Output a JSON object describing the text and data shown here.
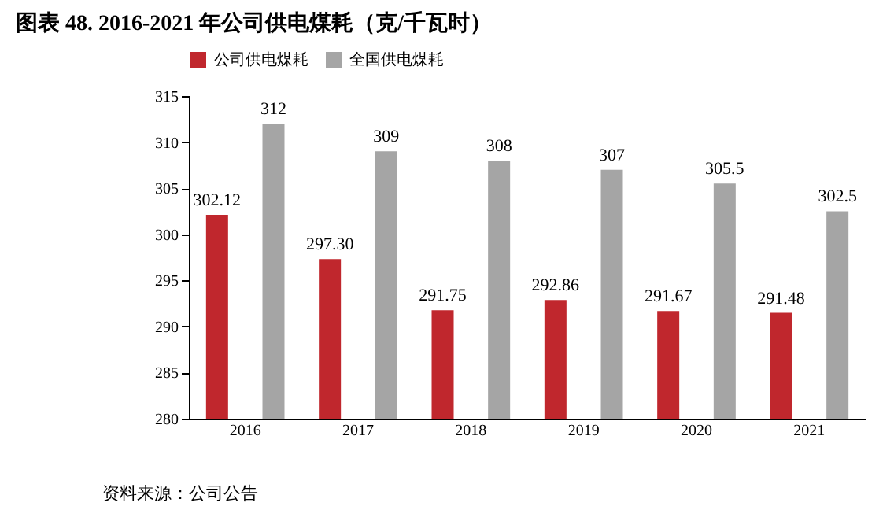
{
  "chart_data": {
    "type": "bar",
    "title": "图表 48. 2016-2021 年公司供电煤耗（克/千瓦时）",
    "categories": [
      "2016",
      "2017",
      "2018",
      "2019",
      "2020",
      "2021"
    ],
    "series": [
      {
        "name": "公司供电煤耗",
        "color": "#c0272d",
        "values": [
          302.12,
          297.3,
          291.75,
          292.86,
          291.67,
          291.48
        ],
        "value_labels": [
          "302.12",
          "297.30",
          "291.75",
          "292.86",
          "291.67",
          "291.48"
        ]
      },
      {
        "name": "全国供电煤耗",
        "color": "#a5a5a5",
        "values": [
          312,
          309,
          308,
          307,
          305.5,
          302.5
        ],
        "value_labels": [
          "312",
          "309",
          "308",
          "307",
          "305.5",
          "302.5"
        ]
      }
    ],
    "ylim": [
      280,
      315
    ],
    "yticks": [
      280,
      285,
      290,
      295,
      300,
      305,
      310,
      315
    ],
    "grid": false,
    "legend": "top",
    "annotations": [
      "资料来源：公司公告"
    ]
  }
}
